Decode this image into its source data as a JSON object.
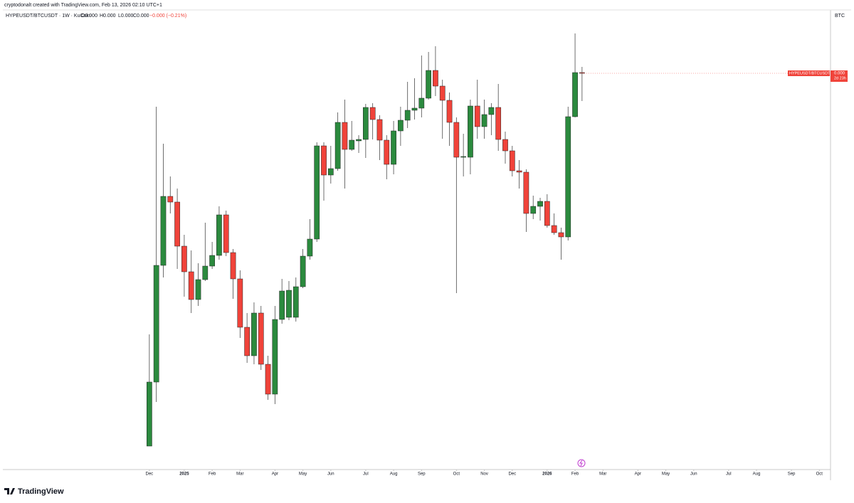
{
  "chart_data": {
    "type": "candlestick",
    "watermark": "cryptodonalt created with TradingView.com, Feb 13, 2026 02:10 UTC+1",
    "legend": {
      "symbol": "HYPEUSDT/BTCUSDT · 1W · KuCoin",
      "open": "O0.000",
      "high": "H0.000",
      "low": "L0.000",
      "close": "C0.000",
      "change": "−0.000 (−0.21%)"
    },
    "y_axis_label": "BTC",
    "price_tag": {
      "symbol": "HYPEUSDT/BTCUSDT",
      "price": "0.000",
      "countdown": "2d 23h"
    },
    "brand": "TradingView",
    "up_color": "#2b8a3e",
    "down_color": "#f0433a",
    "ylim": [
      0,
      0.00063
    ],
    "xlim": [
      -21.4,
      97.4
    ],
    "xticks": [
      {
        "value": 0,
        "label": "Dec"
      },
      {
        "value": 5,
        "label": "2025"
      },
      {
        "value": 9,
        "label": "Feb"
      },
      {
        "value": 13,
        "label": "Mar"
      },
      {
        "value": 18,
        "label": "Apr"
      },
      {
        "value": 22,
        "label": "May"
      },
      {
        "value": 26,
        "label": "Jun"
      },
      {
        "value": 31,
        "label": "Jul"
      },
      {
        "value": 35,
        "label": "Aug"
      },
      {
        "value": 39,
        "label": "Sep"
      },
      {
        "value": 44,
        "label": "Oct"
      },
      {
        "value": 48,
        "label": "Nov"
      },
      {
        "value": 52,
        "label": "Dec"
      },
      {
        "value": 57,
        "label": "2026"
      },
      {
        "value": 61,
        "label": "Feb"
      },
      {
        "value": 65,
        "label": "Mar"
      },
      {
        "value": 70,
        "label": "Apr"
      },
      {
        "value": 74,
        "label": "May"
      },
      {
        "value": 78,
        "label": "Jun"
      },
      {
        "value": 83,
        "label": "Jul"
      },
      {
        "value": 87,
        "label": "Aug"
      },
      {
        "value": 92,
        "label": "Sep"
      },
      {
        "value": 96,
        "label": "Oct"
      }
    ],
    "open": [
      3.3e-05,
      0.000123,
      0.000287,
      0.000384,
      0.000376,
      0.000314,
      0.000278,
      0.000239,
      0.000267,
      0.000286,
      0.000301,
      0.000358,
      0.000305,
      0.000268,
      0.0002,
      0.00016,
      0.00022,
      0.000148,
      0.000106,
      0.000211,
      0.000214,
      0.000214,
      0.000257,
      0.0003,
      0.000324,
      0.000455,
      0.000414,
      0.000423,
      0.000488,
      0.00045,
      0.000462,
      0.000464,
      0.000509,
      0.000492,
      0.000463,
      0.000429,
      0.000476,
      0.000491,
      0.000505,
      0.000508,
      0.000522,
      0.000561,
      0.000539,
      0.000519,
      0.000488,
      0.000439,
      0.000439,
      0.000511,
      0.000482,
      0.000499,
      0.000509,
      0.000464,
      0.000448,
      0.00042,
      0.000418,
      0.00036,
      0.00037,
      0.000377,
      0.000343,
      0.000333,
      0.000327,
      0.000496,
      0.000558
    ],
    "high": [
      0.00019,
      0.00051,
      0.000458,
      0.000412,
      0.000395,
      0.00033,
      0.000308,
      0.00029,
      0.000347,
      0.00032,
      0.00037,
      0.000364,
      0.00031,
      0.00028,
      0.00022,
      0.000235,
      0.00023,
      0.00016,
      0.00023,
      0.000268,
      0.000265,
      0.00027,
      0.00031,
      0.000352,
      0.00046,
      0.00046,
      0.000455,
      0.000502,
      0.00052,
      0.00049,
      0.00047,
      0.000514,
      0.000515,
      0.000498,
      0.00047,
      0.00049,
      0.00051,
      0.000545,
      0.00055,
      0.000582,
      0.000587,
      0.000595,
      0.000548,
      0.00053,
      0.000495,
      0.000472,
      0.00052,
      0.000548,
      0.00052,
      0.000515,
      0.000542,
      0.000475,
      0.000455,
      0.000435,
      0.000422,
      0.000385,
      0.000382,
      0.000387,
      0.00036,
      0.00034,
      0.00051,
      0.000613,
      0.000566
    ],
    "low": [
      3.3e-05,
      9.5e-05,
      0.00027,
      0.00036,
      0.000282,
      0.000243,
      0.00022,
      0.00023,
      0.000265,
      0.000282,
      0.000295,
      0.0003,
      0.00024,
      0.000185,
      0.00015,
      0.000148,
      0.00014,
      9.8e-05,
      9.2e-05,
      0.000205,
      0.00021,
      0.000208,
      0.000255,
      0.000295,
      0.00032,
      0.000378,
      0.000402,
      0.00042,
      0.000395,
      0.000448,
      0.000445,
      0.000438,
      0.000464,
      0.000435,
      0.000408,
      0.000415,
      0.000455,
      0.00048,
      0.000492,
      0.000495,
      0.00052,
      0.000525,
      0.000465,
      0.000455,
      0.000248,
      0.000412,
      0.000415,
      0.000465,
      0.000465,
      0.00047,
      0.000448,
      0.00043,
      0.000412,
      0.000395,
      0.000334,
      0.000352,
      0.00035,
      0.00034,
      0.00033,
      0.000295,
      0.000322,
      0.000495,
      0.000518
    ],
    "close": [
      0.000123,
      0.000287,
      0.000384,
      0.000376,
      0.000314,
      0.000278,
      0.000239,
      0.000267,
      0.000286,
      0.000301,
      0.000358,
      0.000305,
      0.000268,
      0.0002,
      0.00016,
      0.00022,
      0.000148,
      0.000106,
      0.000211,
      0.000251,
      0.000252,
      0.000257,
      0.0003,
      0.000324,
      0.000455,
      0.000414,
      0.000423,
      0.000488,
      0.00045,
      0.000463,
      0.000464,
      0.000509,
      0.000492,
      0.000463,
      0.000429,
      0.000476,
      0.000491,
      0.000505,
      0.000508,
      0.000522,
      0.000561,
      0.000539,
      0.000519,
      0.000488,
      0.000439,
      0.00044,
      0.000511,
      0.000482,
      0.000499,
      0.000509,
      0.000464,
      0.000448,
      0.00042,
      0.000418,
      0.00036,
      0.00037,
      0.000377,
      0.000343,
      0.000333,
      0.000327,
      0.000496,
      0.000558,
      0.000557
    ]
  }
}
